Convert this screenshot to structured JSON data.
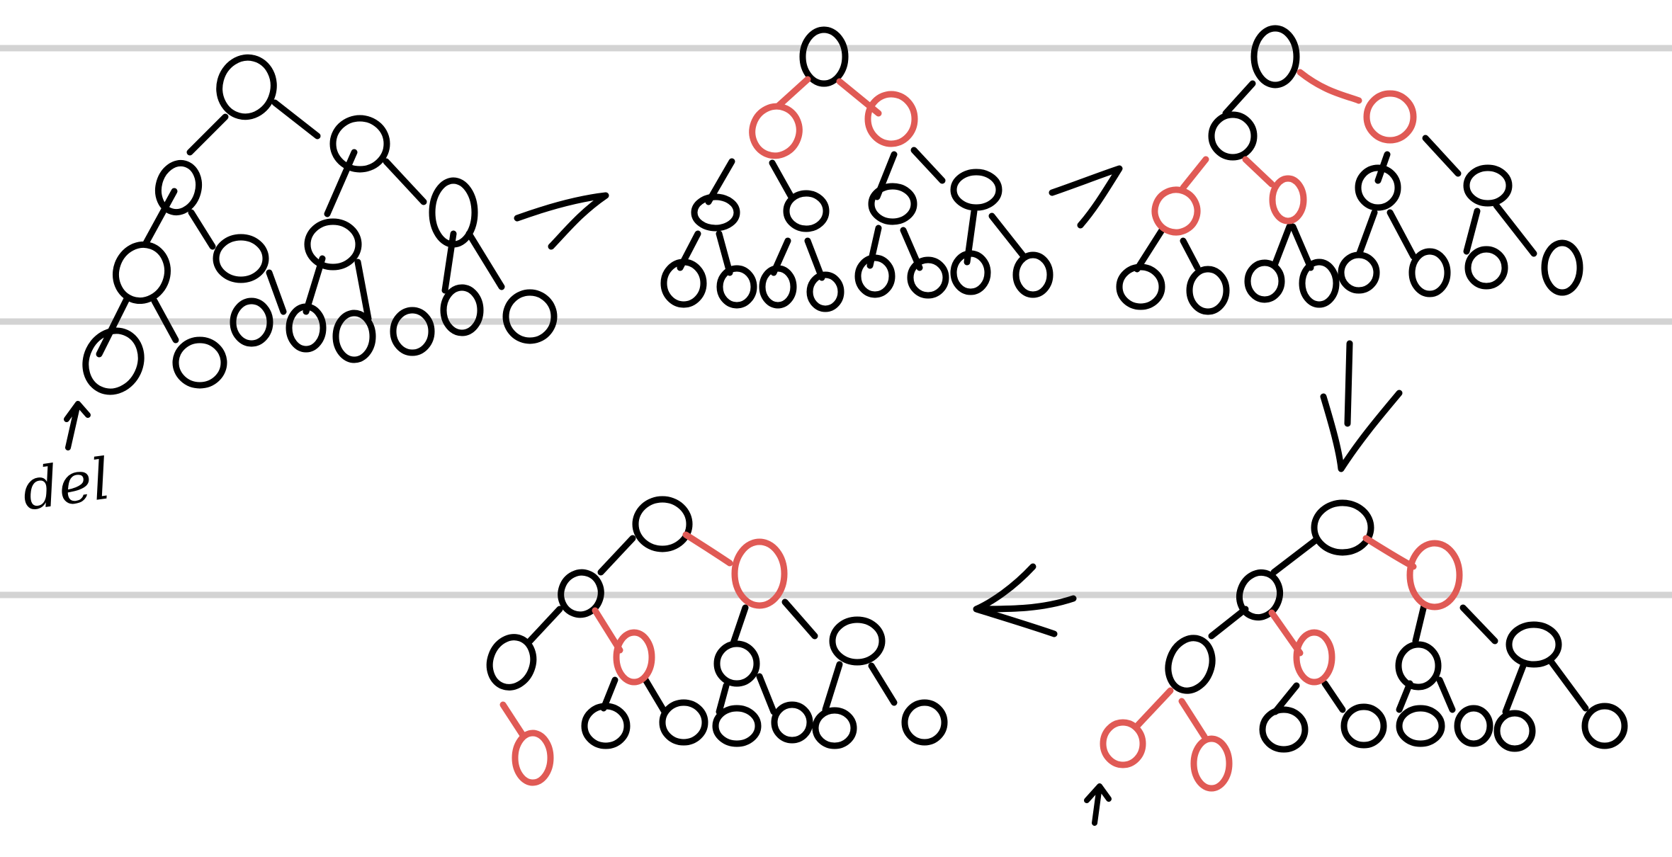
{
  "annotation_label": "del",
  "colors": {
    "ink": "#000000",
    "highlight": "#e05a55",
    "ruled_line": "#d3d3d3",
    "background": "#ffffff"
  },
  "steps": [
    {
      "name": "initial-tree",
      "highlight_nodes": [],
      "marker": "del"
    },
    {
      "name": "step-2",
      "highlight_nodes": [
        2,
        3
      ]
    },
    {
      "name": "step-3",
      "highlight_nodes": [
        3,
        8,
        9
      ]
    },
    {
      "name": "step-4",
      "highlight_nodes": [
        3,
        9,
        16,
        17
      ],
      "marker": "arrow"
    },
    {
      "name": "step-5",
      "highlight_nodes": [
        3,
        9,
        16
      ]
    }
  ],
  "flow_arrows": [
    "right",
    "right",
    "down",
    "left"
  ]
}
